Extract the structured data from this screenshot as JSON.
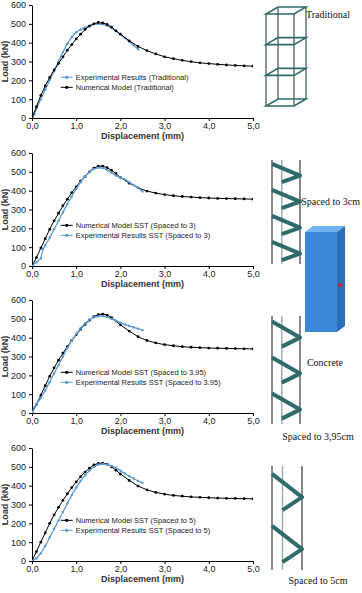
{
  "chart_data": [
    {
      "type": "line",
      "x_label": "Displacement (mm)",
      "y_label": "Load (kN)",
      "xlim": [
        0,
        5
      ],
      "ylim": [
        0,
        600
      ],
      "xticks": [
        {
          "value": 0,
          "label": "0,0"
        },
        {
          "value": 1,
          "label": "1,0"
        },
        {
          "value": 2,
          "label": "2,0"
        },
        {
          "value": 3,
          "label": "3,0"
        },
        {
          "value": 4,
          "label": "4,0"
        },
        {
          "value": 5,
          "label": "5,0"
        }
      ],
      "yticks": [
        0,
        100,
        200,
        300,
        400,
        500,
        600
      ],
      "grid": false,
      "legend": "center",
      "annotations": [
        "Traditional"
      ],
      "series": [
        {
          "name": "Experimental Results (Traditional)",
          "color": "#5b9bd5",
          "marker": "circle",
          "line_style": "solid",
          "x": [
            0,
            0.05,
            0.1,
            0.2,
            0.3,
            0.4,
            0.5,
            0.6,
            0.7,
            0.8,
            0.9,
            1,
            1.1,
            1.2,
            1.3,
            1.4,
            1.5,
            1.6,
            1.7,
            1.8,
            1.9,
            2,
            2.1,
            2.2,
            2.3,
            2.4
          ],
          "values": [
            0,
            20,
            50,
            100,
            150,
            200,
            250,
            300,
            350,
            395,
            430,
            455,
            470,
            480,
            490,
            498,
            500,
            498,
            490,
            478,
            462,
            445,
            425,
            405,
            385,
            365
          ]
        },
        {
          "name": "Numerical Model (Traditional)",
          "color": "#000000",
          "marker": "circle",
          "line_style": "solid",
          "x": [
            0,
            0.1,
            0.2,
            0.3,
            0.4,
            0.5,
            0.6,
            0.7,
            0.8,
            0.9,
            1,
            1.1,
            1.2,
            1.3,
            1.4,
            1.5,
            1.6,
            1.7,
            1.8,
            1.9,
            2,
            2.2,
            2.4,
            2.6,
            2.8,
            3,
            3.2,
            3.4,
            3.6,
            3.8,
            4,
            4.2,
            4.4,
            4.6,
            4.8,
            5
          ],
          "values": [
            0,
            60,
            120,
            170,
            215,
            255,
            290,
            325,
            360,
            390,
            420,
            445,
            470,
            488,
            500,
            507,
            505,
            497,
            482,
            463,
            445,
            410,
            380,
            358,
            340,
            325,
            315,
            306,
            299,
            293,
            289,
            285,
            282,
            279,
            277,
            275
          ]
        }
      ]
    },
    {
      "type": "line",
      "x_label": "Displacement (mm)",
      "y_label": "Load (kN)",
      "xlim": [
        0,
        5
      ],
      "ylim": [
        0,
        600
      ],
      "xticks": [
        {
          "value": 0,
          "label": "0,0"
        },
        {
          "value": 1,
          "label": "1,0"
        },
        {
          "value": 2,
          "label": "2,0"
        },
        {
          "value": 3,
          "label": "3,0"
        },
        {
          "value": 4,
          "label": "4,0"
        },
        {
          "value": 5,
          "label": "5,0"
        }
      ],
      "yticks": [
        0,
        100,
        200,
        300,
        400,
        500,
        600
      ],
      "grid": false,
      "legend": "center",
      "annotations": [
        "Spaced to 3cm"
      ],
      "series": [
        {
          "name": "Numerical Model SST (Spaced to 3)",
          "color": "#000000",
          "marker": "circle",
          "line_style": "solid",
          "x": [
            0,
            0.1,
            0.2,
            0.3,
            0.4,
            0.5,
            0.6,
            0.7,
            0.8,
            0.9,
            1,
            1.1,
            1.2,
            1.3,
            1.4,
            1.5,
            1.6,
            1.7,
            1.8,
            1.9,
            2,
            2.2,
            2.4,
            2.6,
            2.8,
            3,
            3.2,
            3.4,
            3.6,
            3.8,
            4,
            4.2,
            4.4,
            4.6,
            4.8,
            5
          ],
          "values": [
            0,
            45,
            95,
            145,
            195,
            240,
            280,
            320,
            355,
            390,
            420,
            450,
            475,
            500,
            520,
            530,
            530,
            522,
            508,
            490,
            470,
            440,
            415,
            398,
            387,
            379,
            373,
            369,
            366,
            363,
            361,
            359,
            358,
            357,
            356,
            355
          ]
        },
        {
          "name": "Experimental Results SST (Spaced to 3)",
          "color": "#5b9bd5",
          "marker": "circle",
          "line_style": "solid",
          "x": [
            0,
            0.1,
            0.2,
            0.25,
            0.3,
            0.4,
            0.5,
            0.6,
            0.7,
            0.8,
            0.9,
            1,
            1.1,
            1.2,
            1.3,
            1.4,
            1.5,
            1.6,
            1.7,
            1.8,
            1.9,
            2,
            2.1,
            2.2,
            2.3,
            2.4,
            2.5
          ],
          "values": [
            0,
            20,
            40,
            90,
            110,
            150,
            195,
            240,
            285,
            330,
            370,
            410,
            445,
            475,
            500,
            515,
            522,
            520,
            510,
            495,
            480,
            470,
            460,
            445,
            430,
            415,
            395
          ]
        }
      ]
    },
    {
      "type": "line",
      "x_label": "Displacement (mm)",
      "y_label": "Load (kN)",
      "xlim": [
        0,
        5
      ],
      "ylim": [
        0,
        600
      ],
      "xticks": [
        {
          "value": 0,
          "label": "0,0"
        },
        {
          "value": 1,
          "label": "1,0"
        },
        {
          "value": 2,
          "label": "2,0"
        },
        {
          "value": 3,
          "label": "3,0"
        },
        {
          "value": 4,
          "label": "4,0"
        },
        {
          "value": 5,
          "label": "5,0"
        }
      ],
      "yticks": [
        0,
        100,
        200,
        300,
        400,
        500,
        600
      ],
      "grid": false,
      "legend": "center",
      "annotations": [
        "Concrete",
        "Spaced to 3,95cm"
      ],
      "series": [
        {
          "name": "Numerical Model SST (Spaced to 3.95)",
          "color": "#000000",
          "marker": "circle",
          "line_style": "solid",
          "x": [
            0,
            0.1,
            0.2,
            0.3,
            0.4,
            0.5,
            0.6,
            0.7,
            0.8,
            0.9,
            1,
            1.1,
            1.2,
            1.3,
            1.4,
            1.5,
            1.6,
            1.7,
            1.8,
            1.9,
            2,
            2.2,
            2.4,
            2.6,
            2.8,
            3,
            3.2,
            3.4,
            3.6,
            3.8,
            4,
            4.2,
            4.4,
            4.6,
            4.8,
            5
          ],
          "values": [
            0,
            45,
            95,
            145,
            195,
            240,
            280,
            318,
            352,
            385,
            415,
            445,
            470,
            493,
            512,
            522,
            525,
            520,
            506,
            488,
            468,
            435,
            405,
            385,
            372,
            363,
            357,
            352,
            349,
            347,
            345,
            344,
            343,
            342,
            341,
            340
          ]
        },
        {
          "name": "Experimental Results SST (Spaced to 3.95)",
          "color": "#5b9bd5",
          "marker": "circle",
          "line_style": "solid",
          "x": [
            0,
            0.05,
            0.1,
            0.2,
            0.3,
            0.4,
            0.5,
            0.6,
            0.7,
            0.8,
            0.9,
            1,
            1.1,
            1.2,
            1.3,
            1.4,
            1.5,
            1.6,
            1.7,
            1.8,
            1.9,
            2,
            2.1,
            2.2,
            2.3,
            2.4,
            2.5
          ],
          "values": [
            0,
            30,
            45,
            80,
            120,
            165,
            210,
            255,
            300,
            345,
            385,
            420,
            450,
            475,
            495,
            508,
            514,
            515,
            510,
            500,
            490,
            480,
            470,
            462,
            455,
            448,
            440
          ]
        }
      ]
    },
    {
      "type": "line",
      "x_label": "Displacement (mm)",
      "y_label": "Load (kN)",
      "xlim": [
        0,
        5
      ],
      "ylim": [
        0,
        600
      ],
      "xticks": [
        {
          "value": 0,
          "label": "0,0"
        },
        {
          "value": 1,
          "label": "1,0"
        },
        {
          "value": 2,
          "label": "2,0"
        },
        {
          "value": 3,
          "label": "3,0"
        },
        {
          "value": 4,
          "label": "4,0"
        },
        {
          "value": 5,
          "label": "5,0"
        }
      ],
      "yticks": [
        0,
        100,
        200,
        300,
        400,
        500,
        600
      ],
      "grid": false,
      "legend": "center",
      "annotations": [
        "Spaced to 5cm"
      ],
      "series": [
        {
          "name": "Numerical Model SST (Spaced to 5)",
          "color": "#000000",
          "marker": "circle",
          "line_style": "solid",
          "x": [
            0,
            0.1,
            0.2,
            0.3,
            0.4,
            0.5,
            0.6,
            0.7,
            0.8,
            0.9,
            1,
            1.1,
            1.2,
            1.3,
            1.4,
            1.5,
            1.6,
            1.7,
            1.8,
            1.9,
            2,
            2.2,
            2.4,
            2.6,
            2.8,
            3,
            3.2,
            3.4,
            3.6,
            3.8,
            4,
            4.2,
            4.4,
            4.6,
            4.8,
            5
          ],
          "values": [
            0,
            50,
            100,
            150,
            200,
            245,
            285,
            322,
            357,
            390,
            420,
            448,
            472,
            493,
            510,
            518,
            520,
            514,
            500,
            482,
            462,
            428,
            398,
            378,
            364,
            355,
            348,
            344,
            340,
            338,
            336,
            334,
            333,
            332,
            331,
            330
          ]
        },
        {
          "name": "Experimental Results SST (Spaced to 5)",
          "color": "#5b9bd5",
          "marker": "circle",
          "line_style": "solid",
          "x": [
            0,
            0.1,
            0.2,
            0.3,
            0.4,
            0.5,
            0.6,
            0.7,
            0.8,
            0.9,
            1,
            1.1,
            1.2,
            1.3,
            1.4,
            1.5,
            1.6,
            1.7,
            1.8,
            1.9,
            2,
            2.1,
            2.2,
            2.3,
            2.4,
            2.5
          ],
          "values": [
            0,
            15,
            40,
            80,
            125,
            170,
            215,
            260,
            305,
            350,
            390,
            425,
            455,
            480,
            500,
            512,
            515,
            512,
            505,
            495,
            480,
            465,
            450,
            438,
            425,
            415
          ]
        }
      ]
    }
  ]
}
